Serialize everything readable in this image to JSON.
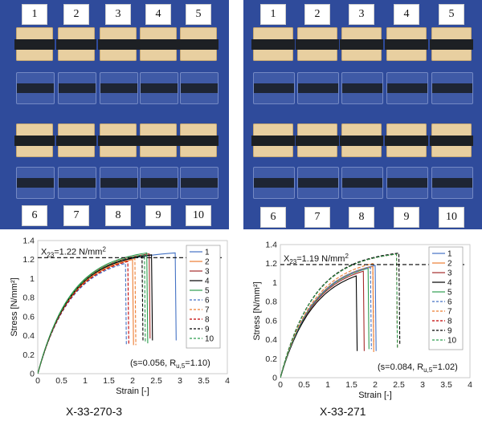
{
  "photos": [
    {
      "top_labels": [
        "1",
        "2",
        "3",
        "4",
        "5"
      ],
      "bottom_labels": [
        "6",
        "7",
        "8",
        "9",
        "10"
      ]
    },
    {
      "top_labels": [
        "1",
        "2",
        "3",
        "4",
        "5"
      ],
      "bottom_labels": [
        "6",
        "7",
        "8",
        "9",
        "10"
      ]
    }
  ],
  "captions": [
    "X-33-270-3",
    "X-33-271"
  ],
  "colors": {
    "photo_background": "#2f4b9b",
    "series": [
      "#4472c4",
      "#ed7d31",
      "#a52a2a",
      "#000000",
      "#2e9e4f",
      "#4472c4",
      "#ed7d31",
      "#c00000",
      "#000000",
      "#2e9e4f"
    ]
  },
  "chart_data": [
    {
      "type": "line",
      "xlabel": "Strain [-]",
      "ylabel": "Stress [N/mm²]",
      "xlim": [
        0,
        4
      ],
      "ylim": [
        0,
        1.4
      ],
      "xticks": [
        "0",
        "0.5",
        "1",
        "1.5",
        "2",
        "2.5",
        "3",
        "3.5",
        "4"
      ],
      "yticks": [
        "0",
        "0.2",
        "0.4",
        "0.6",
        "0.8",
        "1",
        "1.2",
        "1.4"
      ],
      "reference_line": {
        "y": 1.22,
        "label_main": "X",
        "label_sub": "23",
        "label_rest": "=1.22 N/mm",
        "label_sup": "2"
      },
      "annotation": {
        "text_a": "(s=0.056, R",
        "sub": "u,5",
        "text_b": "=1.10)"
      },
      "legend": {
        "placement": "top-right"
      },
      "series": [
        {
          "name": "1",
          "dash": false,
          "peak_x": 2.9,
          "peak_y": 1.27,
          "drop_y": 0.35
        },
        {
          "name": "2",
          "dash": false,
          "peak_x": 2.0,
          "peak_y": 1.2,
          "drop_y": 0.3
        },
        {
          "name": "3",
          "dash": false,
          "peak_x": 2.35,
          "peak_y": 1.26,
          "drop_y": 0.37
        },
        {
          "name": "4",
          "dash": false,
          "peak_x": 2.4,
          "peak_y": 1.25,
          "drop_y": 0.35
        },
        {
          "name": "5",
          "dash": false,
          "peak_x": 2.3,
          "peak_y": 1.27,
          "drop_y": 0.32
        },
        {
          "name": "6",
          "dash": true,
          "peak_x": 1.85,
          "peak_y": 1.16,
          "drop_y": 0.3
        },
        {
          "name": "7",
          "dash": true,
          "peak_x": 2.05,
          "peak_y": 1.21,
          "drop_y": 0.3
        },
        {
          "name": "8",
          "dash": true,
          "peak_x": 1.9,
          "peak_y": 1.18,
          "drop_y": 0.3
        },
        {
          "name": "9",
          "dash": true,
          "peak_x": 2.2,
          "peak_y": 1.24,
          "drop_y": 0.35
        },
        {
          "name": "10",
          "dash": true,
          "peak_x": 2.25,
          "peak_y": 1.25,
          "drop_y": 0.33
        }
      ]
    },
    {
      "type": "line",
      "xlabel": "Strain [-]",
      "ylabel": "Stress [N/mm²]",
      "xlim": [
        0,
        4
      ],
      "ylim": [
        0,
        1.4
      ],
      "xticks": [
        "0",
        "0.5",
        "1",
        "1.5",
        "2",
        "2.5",
        "3",
        "3.5",
        "4"
      ],
      "yticks": [
        "0",
        "0.2",
        "0.4",
        "0.6",
        "0.8",
        "1",
        "1.2",
        "1.4"
      ],
      "reference_line": {
        "y": 1.19,
        "label_main": "X",
        "label_sub": "23",
        "label_rest": "=1.19 N/mm",
        "label_sup": "2"
      },
      "annotation": {
        "text_a": "(s=0.084, R",
        "sub": "u,5",
        "text_b": "=1.02)"
      },
      "legend": {
        "placement": "top-right"
      },
      "series": [
        {
          "name": "1",
          "dash": false,
          "peak_x": 2.0,
          "peak_y": 1.18,
          "drop_y": 0.28
        },
        {
          "name": "2",
          "dash": false,
          "peak_x": 1.95,
          "peak_y": 1.17,
          "drop_y": 0.27
        },
        {
          "name": "3",
          "dash": false,
          "peak_x": 1.75,
          "peak_y": 1.12,
          "drop_y": 0.28
        },
        {
          "name": "4",
          "dash": false,
          "peak_x": 1.6,
          "peak_y": 1.07,
          "drop_y": 0.28
        },
        {
          "name": "5",
          "dash": false,
          "peak_x": 1.85,
          "peak_y": 1.15,
          "drop_y": 0.3
        },
        {
          "name": "6",
          "dash": true,
          "peak_x": 1.9,
          "peak_y": 1.16,
          "drop_y": 0.3
        },
        {
          "name": "7",
          "dash": true,
          "peak_x": 1.95,
          "peak_y": 1.2,
          "drop_y": 0.35
        },
        {
          "name": "8",
          "dash": true,
          "peak_x": 2.45,
          "peak_y": 1.3,
          "drop_y": 0.3
        },
        {
          "name": "9",
          "dash": true,
          "peak_x": 2.5,
          "peak_y": 1.31,
          "drop_y": 0.35
        },
        {
          "name": "10",
          "dash": true,
          "peak_x": 2.45,
          "peak_y": 1.3,
          "drop_y": 0.3
        }
      ]
    }
  ]
}
